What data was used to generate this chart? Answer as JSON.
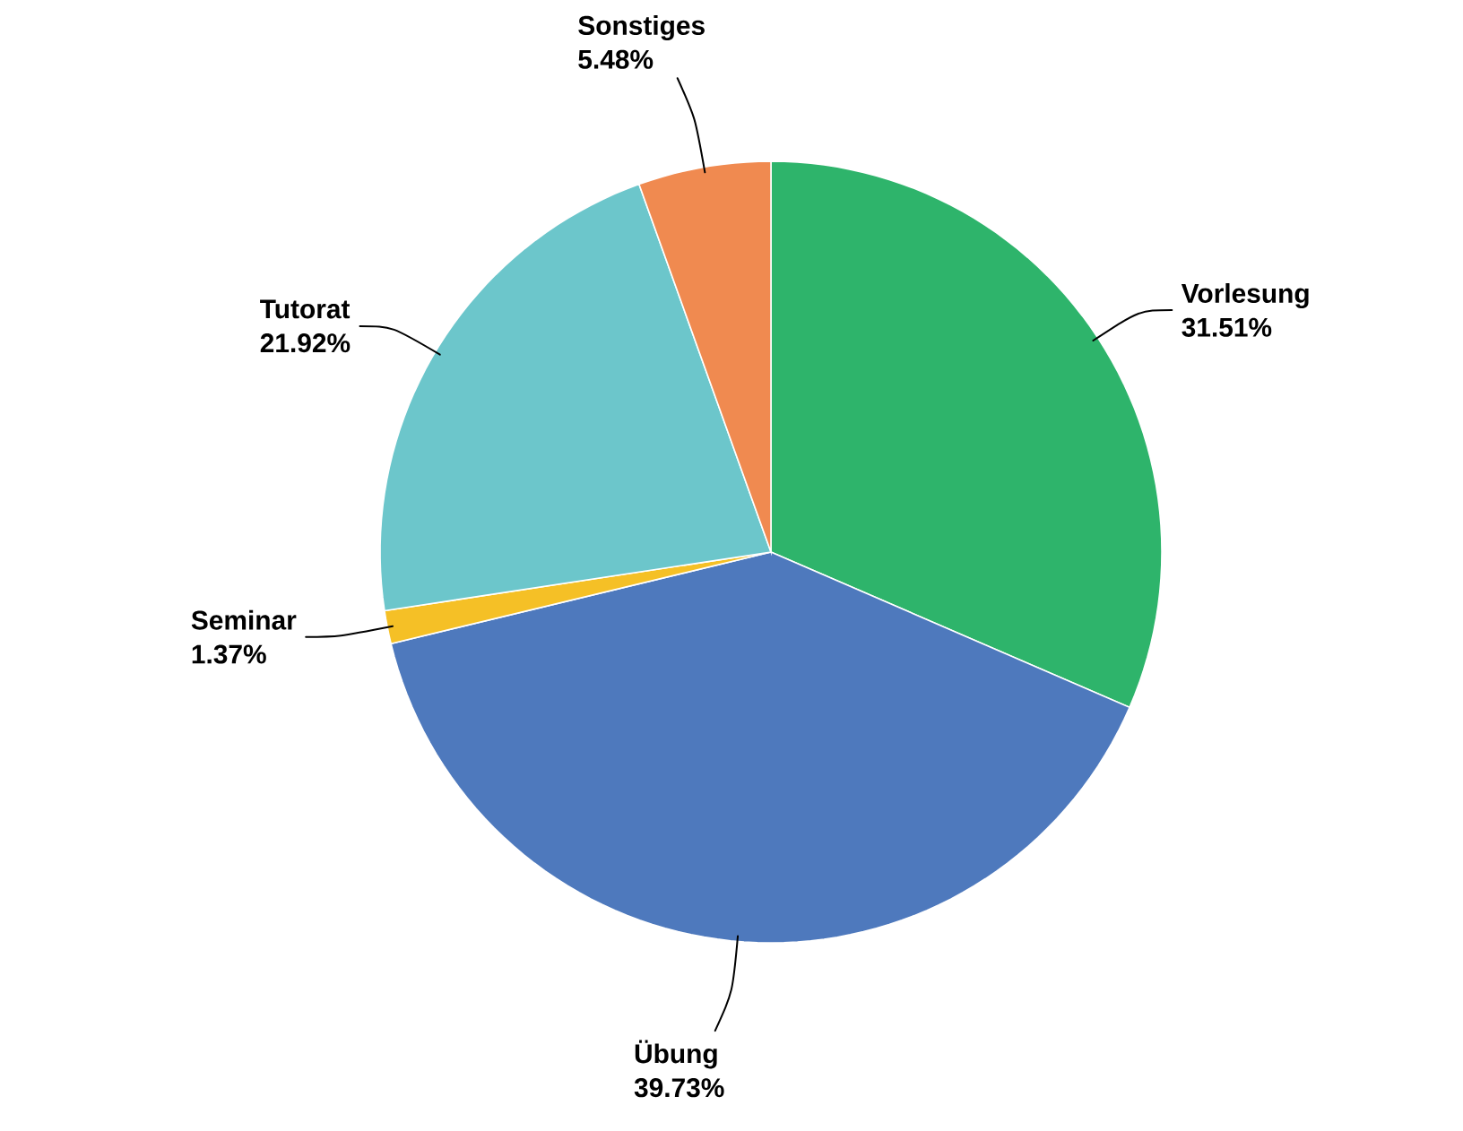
{
  "chart_data": {
    "type": "pie",
    "categories": [
      "Vorlesung",
      "Übung",
      "Seminar",
      "Tutorat",
      "Sonstiges"
    ],
    "values": [
      31.51,
      39.73,
      1.37,
      21.92,
      5.48
    ],
    "colors": [
      "#2eb46b",
      "#4e79bd",
      "#f5c026",
      "#6cc6cb",
      "#f08a50"
    ],
    "value_labels": [
      "31.51%",
      "39.73%",
      "1.37%",
      "21.92%",
      "5.48%"
    ]
  }
}
